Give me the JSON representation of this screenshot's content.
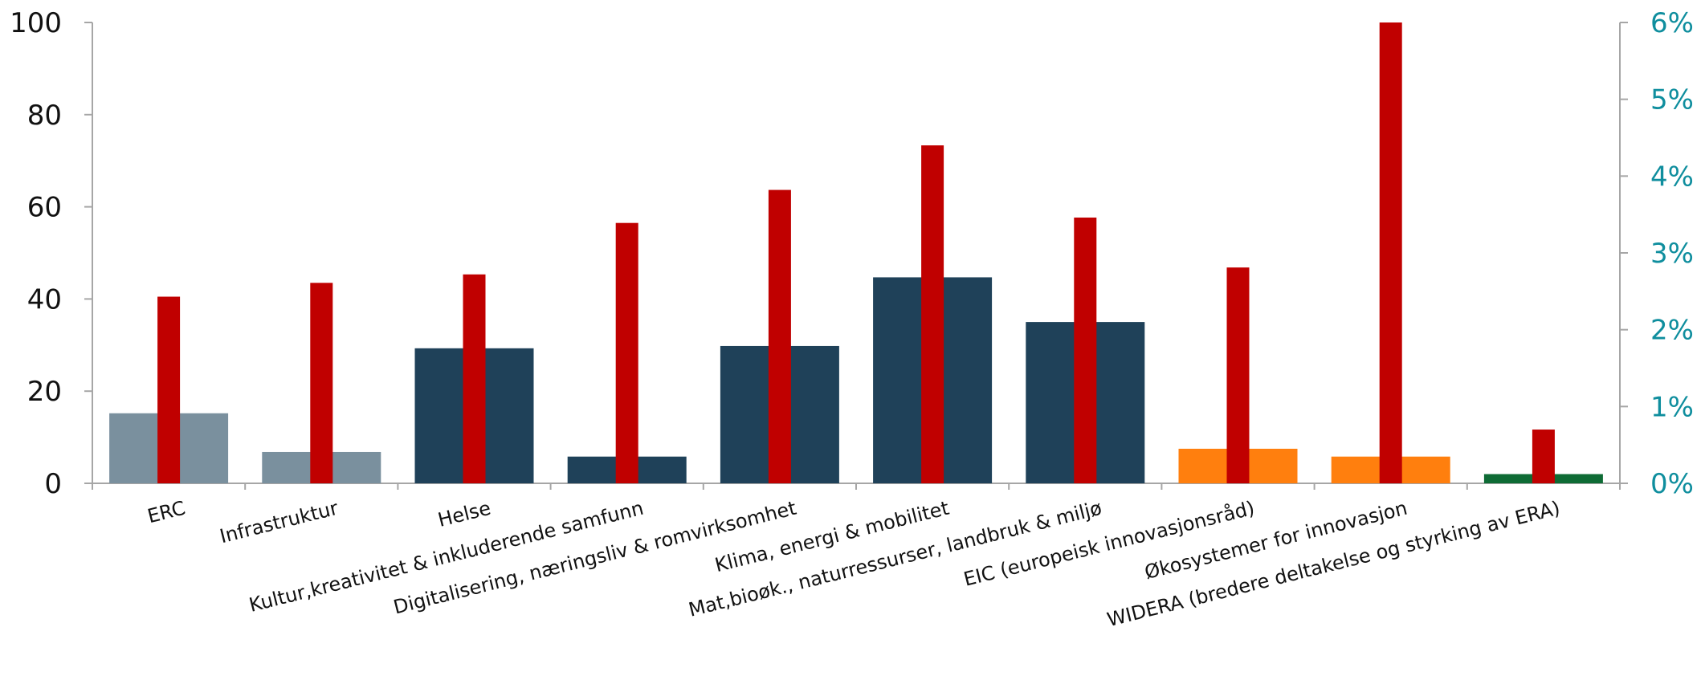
{
  "chart_data": {
    "type": "bar",
    "categories": [
      "ERC",
      "Infrastruktur",
      "Helse",
      "Kultur,kreativitet & inkluderende samfunn",
      "Digitalisering, næringsliv & romvirksomhet",
      "Klima,  energi & mobilitet",
      "Mat,bioøk., naturressurser, landbruk & miljø",
      "EIC (europeisk innovasjonsråd)",
      "Økosystemer for innovasjon",
      "WIDERA (bredere deltakelse og styrking av ERA)"
    ],
    "series": [
      {
        "axis": "left",
        "values": [
          15.2,
          6.8,
          29.3,
          5.8,
          29.8,
          44.7,
          35.0,
          7.5,
          5.8,
          2.0
        ],
        "colors": [
          "#7A909E",
          "#7A909E",
          "#1F4159",
          "#1F4159",
          "#1F4159",
          "#1F4159",
          "#1F4159",
          "#FF7F0E",
          "#FF7F0E",
          "#0E6B35"
        ]
      },
      {
        "axis": "right",
        "values": [
          2.43,
          2.61,
          2.72,
          3.39,
          3.82,
          4.4,
          3.46,
          2.81,
          6.0,
          0.7
        ],
        "color": "#C00000"
      }
    ],
    "y_left": {
      "min": 0,
      "max": 100,
      "ticks": [
        0,
        20,
        40,
        60,
        80,
        100
      ]
    },
    "y_right": {
      "min": 0,
      "max": 6,
      "ticks": [
        "0%",
        "1%",
        "2%",
        "3%",
        "4%",
        "5%",
        "6%"
      ],
      "color": "#0F8E9E"
    },
    "grid": false,
    "legend": "none"
  }
}
